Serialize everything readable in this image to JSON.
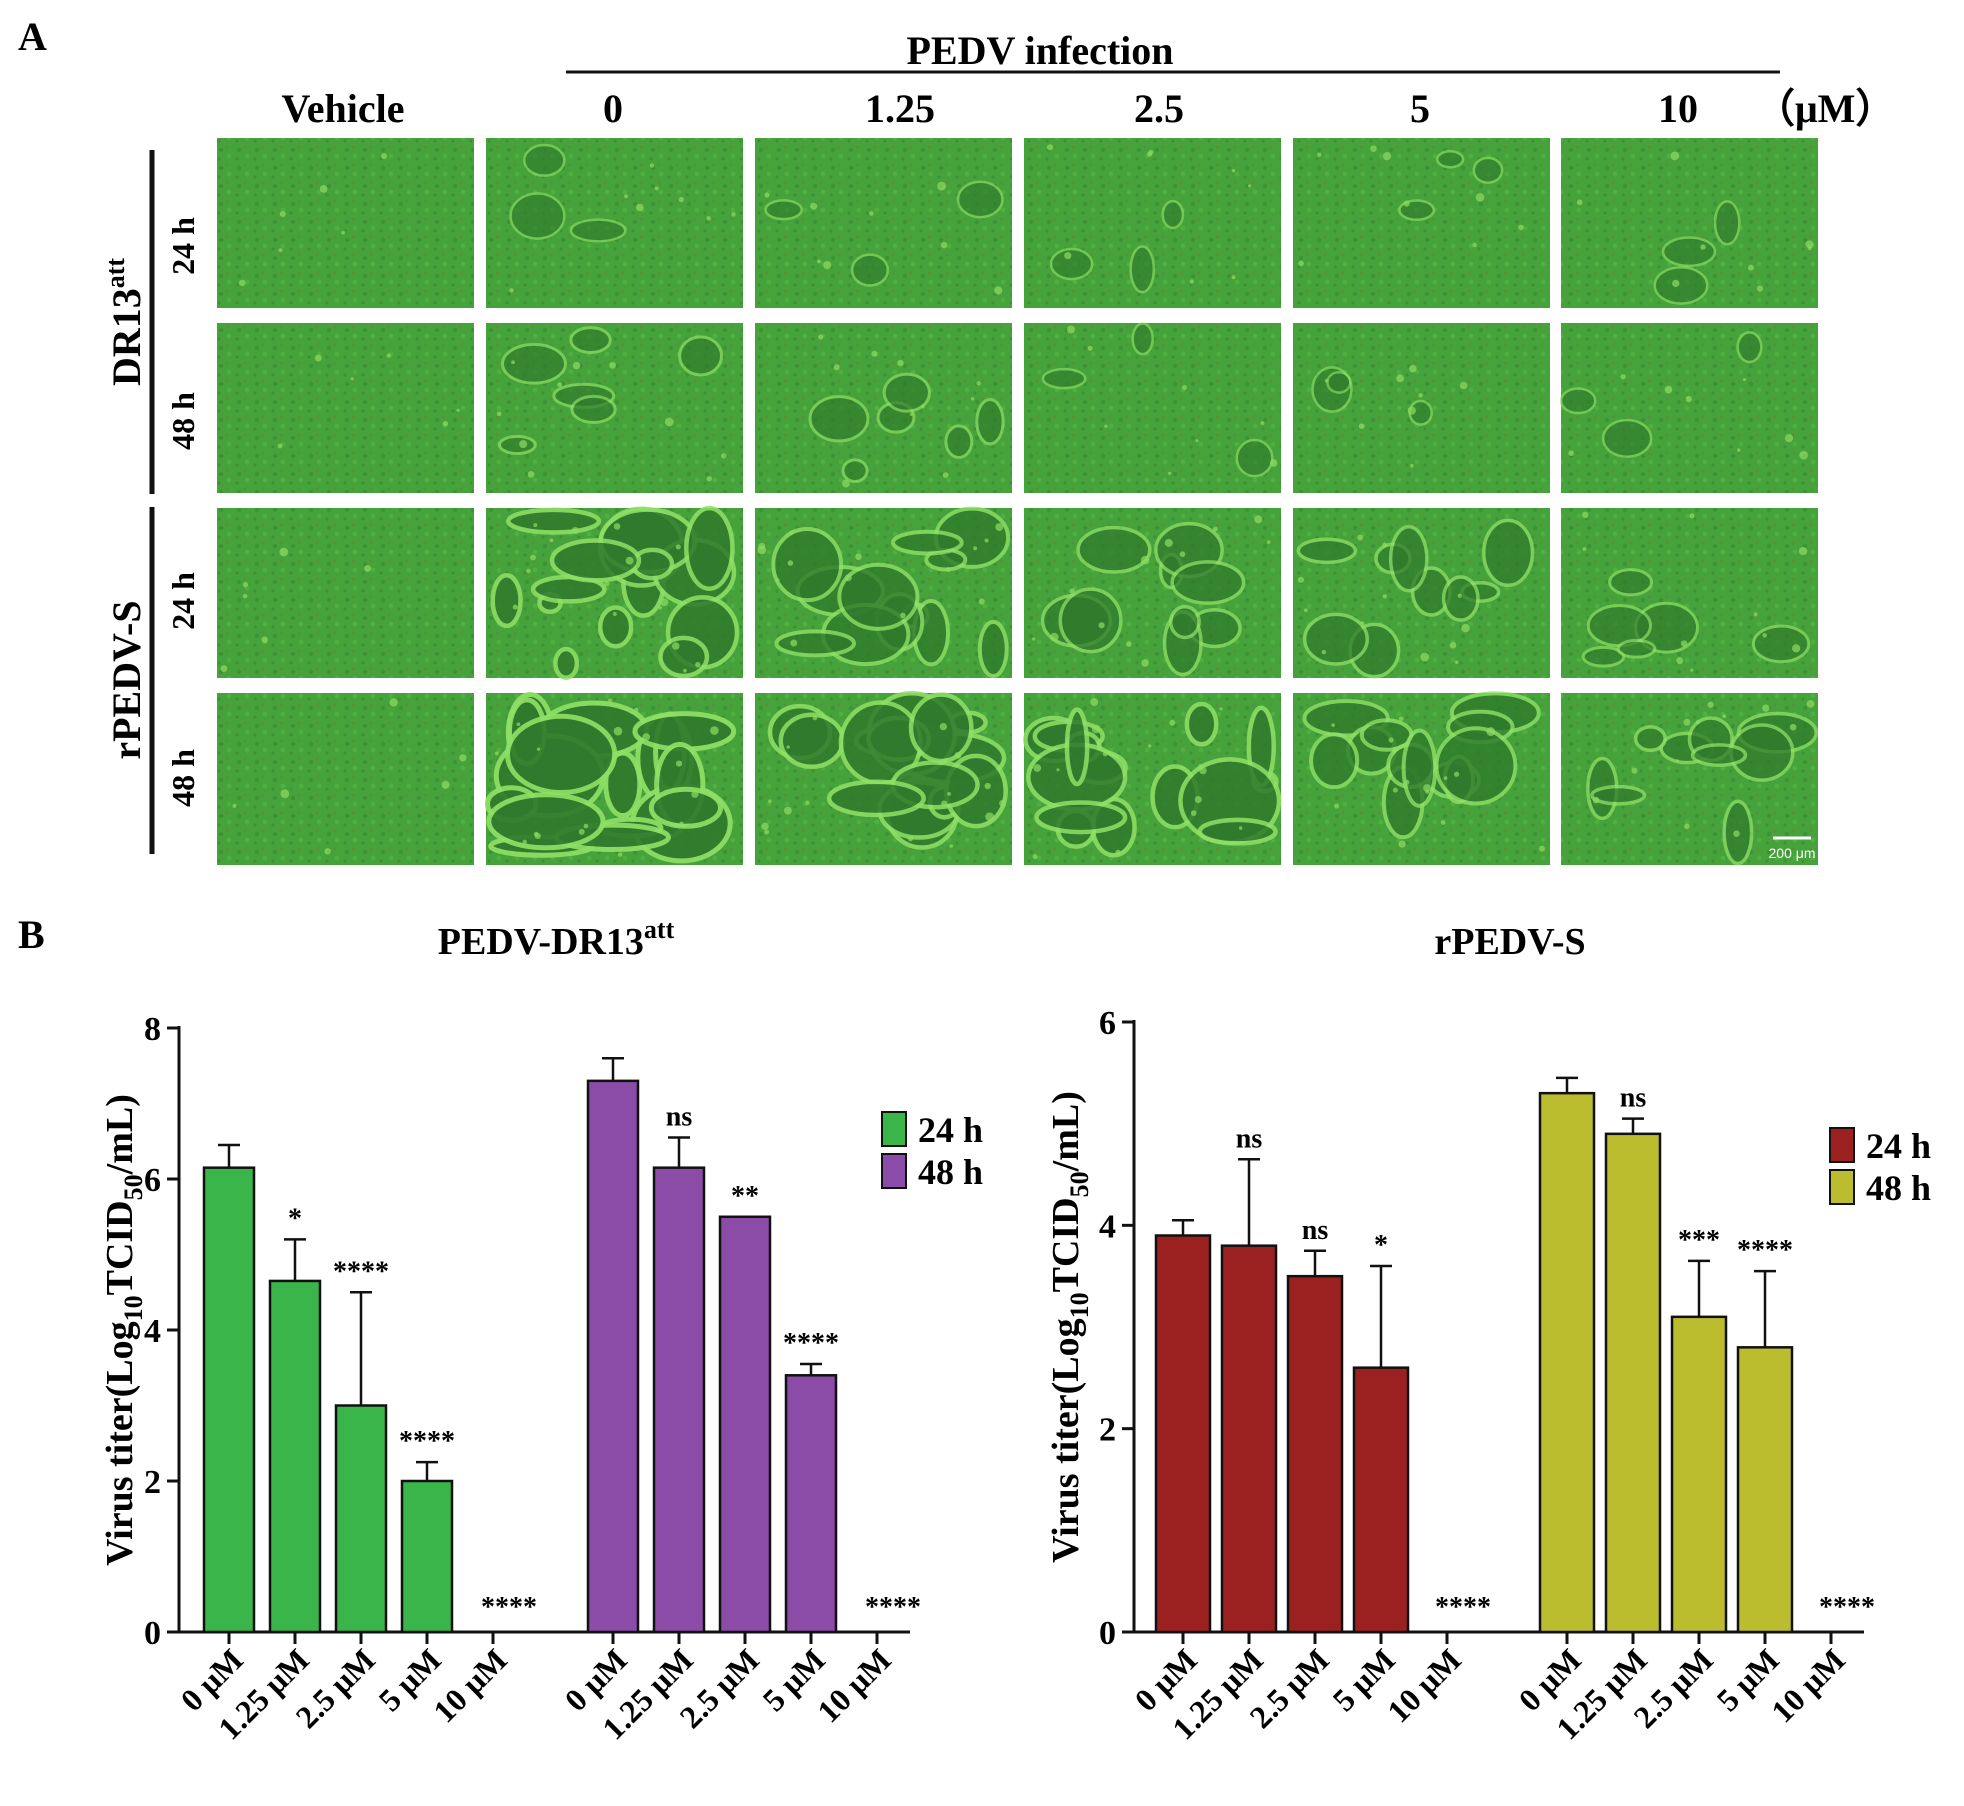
{
  "panel_a": {
    "label": "A",
    "group_label": "PEDV infection",
    "columns": [
      "Vehicle",
      "0",
      "1.25",
      "2.5",
      "5",
      "10"
    ],
    "unit": "（μM）",
    "rows": [
      {
        "strain": "DR13",
        "strain_sup": "att",
        "times": [
          "24 h",
          "48 h"
        ]
      },
      {
        "strain": "rPEDV-S",
        "strain_sup": "",
        "times": [
          "24 h",
          "48 h"
        ]
      }
    ],
    "scale_bar": "200 μm",
    "colors": {
      "cell_green": "#46a23a",
      "cell_bright": "#7fd05a",
      "cell_dark": "#2f7a2c"
    },
    "severity_note_levels": [
      [
        0,
        1,
        1,
        1,
        1,
        1
      ],
      [
        0,
        2,
        2,
        1,
        1,
        1
      ],
      [
        0,
        5,
        4,
        3,
        3,
        2
      ],
      [
        0,
        6,
        5,
        5,
        4,
        3
      ]
    ]
  },
  "panel_b": {
    "label": "B"
  },
  "chart_data": [
    {
      "type": "bar",
      "title": "PEDV-DR13",
      "title_sup": "att",
      "ylabel_parts": [
        "Virus titer(Log",
        "10",
        "TCID",
        "50",
        "/mL)"
      ],
      "ylim": [
        0,
        8
      ],
      "yticks": [
        0,
        2,
        4,
        6,
        8
      ],
      "categories": [
        "0 μM",
        "1.25 μM",
        "2.5 μM",
        "5 μM",
        "10 μM"
      ],
      "legend_placement": "right",
      "series": [
        {
          "name": "24 h",
          "color": "#3ab54a",
          "values": [
            6.15,
            4.65,
            3.0,
            2.0,
            0
          ],
          "errors": [
            0.3,
            0.55,
            1.5,
            0.25,
            0
          ],
          "sig": [
            "",
            "*",
            "****",
            "****",
            "****"
          ]
        },
        {
          "name": "48 h",
          "color": "#8b4ca8",
          "values": [
            7.3,
            6.15,
            5.5,
            3.4,
            0
          ],
          "errors": [
            0.3,
            0.4,
            0,
            0.15,
            0
          ],
          "sig": [
            "",
            "ns",
            "**",
            "****",
            "****"
          ]
        }
      ]
    },
    {
      "type": "bar",
      "title": "rPEDV-S",
      "title_sup": "",
      "ylabel_parts": [
        "Virus titer(Log",
        "10",
        "TCID",
        "50",
        "/mL)"
      ],
      "ylim": [
        0,
        6
      ],
      "yticks": [
        0,
        2,
        4,
        6
      ],
      "categories": [
        "0 μM",
        "1.25 μM",
        "2.5 μM",
        "5 μM",
        "10 μM"
      ],
      "legend_placement": "right",
      "series": [
        {
          "name": "24 h",
          "color": "#9b2020",
          "values": [
            3.9,
            3.8,
            3.5,
            2.6,
            0
          ],
          "errors": [
            0.15,
            0.85,
            0.25,
            1.0,
            0
          ],
          "sig": [
            "",
            "ns",
            "ns",
            "*",
            "****"
          ]
        },
        {
          "name": "48 h",
          "color": "#bcbd2e",
          "values": [
            5.3,
            4.9,
            3.1,
            2.8,
            0
          ],
          "errors": [
            0.15,
            0.15,
            0.55,
            0.75,
            0
          ],
          "sig": [
            "",
            "ns",
            "***",
            "****",
            "****"
          ]
        }
      ]
    }
  ]
}
